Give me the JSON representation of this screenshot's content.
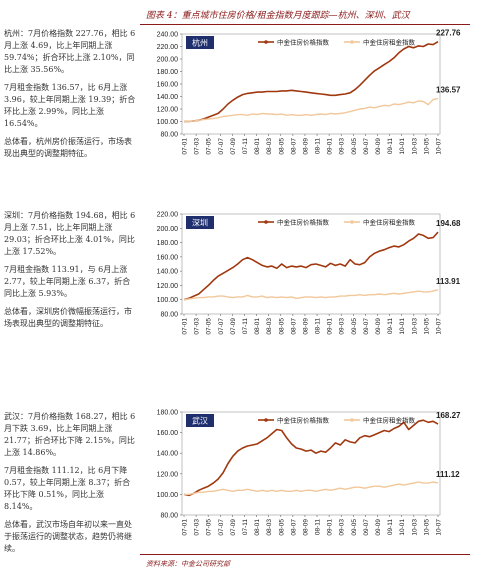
{
  "header": {
    "title": "图表 4：重点城市住房价格/租金指数月度跟踪—杭州、深圳、武汉"
  },
  "sections": [
    {
      "paragraphs": [
        "杭州：7月价格指数 227.76，相比 6月上涨 4.69，比上年同期上涨 59.74%；折合环比上涨 2.10%，同比上涨 35.56%。",
        "7月租金指数 136.57，比 6月上涨 3.96，较上年同期上涨 19.39；折合环比上涨 2.99%，同比上涨 16.54%。",
        "总体看，杭州房价振荡运行，市场表现出典型的调整期特征。"
      ]
    },
    {
      "paragraphs": [
        "深圳：7月价格指数 194.68，相比 6月上涨 7.51，比上年同期上涨 29.03；折合环比上涨 4.01%，同比上涨 17.52%。",
        "7月租金指数 113.91，与 6月上涨 2.77，较上年同期上涨 6.37，折合同比上涨 5.93%。",
        "总体看，深圳房价微幅振荡运行，市场表现出典型的调整期特征。"
      ]
    },
    {
      "paragraphs": [
        "武汉：7月价格指数 168.27，相比 6月下跌 3.69，比上年同期上涨 21.77；折合环比下降 2.15%，同比上涨 14.86%。",
        "7月租金指数 111.12，比 6月下降 0.57，较上年同期上涨 8.37；折合环比下降 0.51%，同比上涨 8.14%。",
        "总体看，武汉市场自年初以来一直处于振荡运行的调整状态，趋势仍将继续。"
      ]
    }
  ],
  "source": "资料来源：中金公司研究部",
  "colors": {
    "price": "#a0380f",
    "rent": "#f2c79a",
    "city_box": "#1f2f6e",
    "accent": "#8b1a1a"
  },
  "chart_data": [
    {
      "type": "line",
      "city": "杭州",
      "legend": [
        "中金住房价格指数",
        "中金住房租金指数"
      ],
      "x_ticks": [
        "07-01",
        "07-03",
        "07-05",
        "07-07",
        "07-09",
        "07-11",
        "08-01",
        "08-03",
        "08-05",
        "08-07",
        "08-09",
        "08-11",
        "09-01",
        "09-03",
        "09-05",
        "09-07",
        "09-09",
        "09-11",
        "10-01",
        "10-03",
        "10-05",
        "10-07"
      ],
      "ylim": [
        80,
        240
      ],
      "yticks": [
        "240.00",
        "220.00",
        "200.00",
        "180.00",
        "160.00",
        "140.00",
        "120.00",
        "100.00",
        "80.00"
      ],
      "series": [
        {
          "name": "中金住房价格指数",
          "end_label": "227.76",
          "values": [
            100,
            100,
            101,
            102,
            104,
            107,
            110,
            113,
            120,
            128,
            134,
            139,
            143,
            145,
            146,
            147,
            147,
            148,
            148,
            148,
            149,
            149,
            150,
            149,
            148,
            147,
            146,
            145,
            144,
            143,
            142,
            142,
            143,
            144,
            146,
            151,
            158,
            166,
            174,
            181,
            186,
            191,
            196,
            202,
            210,
            216,
            220,
            218,
            221,
            220,
            224,
            223,
            227.76
          ]
        },
        {
          "name": "中金住房租金指数",
          "end_label": "136.57",
          "values": [
            100,
            100,
            101,
            102,
            103,
            104,
            105,
            106,
            108,
            109,
            110,
            111,
            111,
            110,
            112,
            111,
            113,
            112,
            112,
            111,
            112,
            110,
            111,
            110,
            110,
            111,
            110,
            111,
            112,
            111,
            113,
            112,
            113,
            114,
            116,
            118,
            120,
            121,
            123,
            122,
            124,
            126,
            125,
            128,
            127,
            129,
            131,
            130,
            133,
            132,
            127,
            135,
            136.57
          ]
        }
      ]
    },
    {
      "type": "line",
      "city": "深圳",
      "legend": [
        "中金住房价格指数",
        "中金住房租金指数"
      ],
      "x_ticks": [
        "07-01",
        "07-03",
        "07-05",
        "07-07",
        "07-09",
        "07-11",
        "08-01",
        "08-03",
        "08-05",
        "08-07",
        "08-09",
        "08-11",
        "09-01",
        "09-03",
        "09-05",
        "09-07",
        "09-09",
        "09-11",
        "10-01",
        "10-03",
        "10-05",
        "10-07"
      ],
      "ylim": [
        80,
        220
      ],
      "yticks": [
        "220.00",
        "200.00",
        "180.00",
        "160.00",
        "140.00",
        "120.00",
        "100.00",
        "80.00"
      ],
      "series": [
        {
          "name": "中金住房价格指数",
          "end_label": "194.68",
          "values": [
            100,
            102,
            105,
            108,
            114,
            120,
            127,
            133,
            137,
            141,
            145,
            150,
            156,
            159,
            156,
            152,
            148,
            146,
            147,
            144,
            150,
            145,
            147,
            146,
            147,
            145,
            149,
            150,
            148,
            146,
            151,
            148,
            150,
            147,
            156,
            150,
            149,
            152,
            160,
            165,
            168,
            170,
            173,
            175,
            174,
            177,
            182,
            186,
            192,
            190,
            186,
            187,
            194.68
          ]
        },
        {
          "name": "中金住房租金指数",
          "end_label": "113.91",
          "values": [
            100,
            101,
            102,
            103,
            103,
            104,
            104,
            105,
            105,
            104,
            103,
            104,
            104,
            106,
            104,
            104,
            105,
            103,
            104,
            103,
            104,
            103,
            104,
            102,
            103,
            104,
            104,
            103,
            104,
            103,
            104,
            104,
            105,
            105,
            106,
            106,
            107,
            106,
            107,
            107,
            108,
            107,
            108,
            109,
            108,
            109,
            110,
            111,
            112,
            111,
            111,
            112,
            113.91
          ]
        }
      ]
    },
    {
      "type": "line",
      "city": "武汉",
      "legend": [
        "中金住房价格指数",
        "中金住房租金指数"
      ],
      "x_ticks": [
        "07-01",
        "07-03",
        "07-05",
        "07-07",
        "07-09",
        "07-11",
        "08-01",
        "08-03",
        "08-05",
        "08-07",
        "08-09",
        "08-11",
        "09-01",
        "09-03",
        "09-05",
        "09-07",
        "09-09",
        "09-11",
        "10-01",
        "10-03",
        "10-05",
        "10-07"
      ],
      "ylim": [
        80,
        180
      ],
      "yticks": [
        "180.00",
        "160.00",
        "140.00",
        "120.00",
        "100.00",
        "80.00"
      ],
      "series": [
        {
          "name": "中金住房价格指数",
          "end_label": "168.27",
          "values": [
            100,
            99,
            101,
            104,
            106,
            108,
            111,
            115,
            121,
            130,
            137,
            142,
            145,
            147,
            148,
            149,
            152,
            155,
            159,
            163,
            162,
            155,
            149,
            145,
            144,
            142,
            143,
            140,
            142,
            141,
            145,
            150,
            148,
            153,
            151,
            150,
            155,
            157,
            156,
            158,
            160,
            162,
            161,
            164,
            166,
            170,
            163,
            167,
            171,
            172,
            170,
            171,
            168.27
          ]
        },
        {
          "name": "中金住房租金指数",
          "end_label": "111.12",
          "values": [
            100,
            100,
            101,
            102,
            102,
            103,
            103,
            104,
            105,
            104,
            103,
            104,
            104,
            105,
            104,
            103,
            104,
            103,
            104,
            103,
            104,
            103,
            103,
            104,
            103,
            104,
            104,
            103,
            104,
            105,
            104,
            105,
            106,
            105,
            106,
            107,
            107,
            106,
            107,
            108,
            108,
            107,
            108,
            109,
            110,
            109,
            110,
            111,
            112,
            111,
            111,
            112,
            111.12
          ]
        }
      ]
    }
  ]
}
